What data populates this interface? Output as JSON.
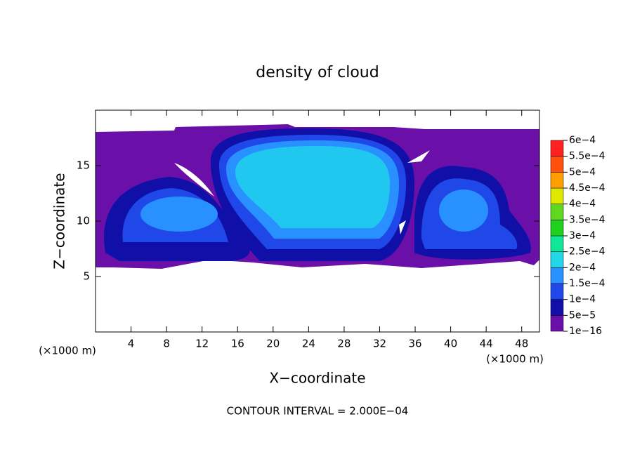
{
  "chart_data": {
    "type": "contour",
    "title": "density of cloud",
    "x_label": "X−coordinate",
    "y_label": "Z−coordinate",
    "x_unit_label": "(×1000 m)",
    "y_unit_label": "(×1000 m)",
    "annotation": "CONTOUR INTERVAL = 2.000E−04",
    "xlim": [
      0,
      50
    ],
    "xticks": [
      4,
      8,
      12,
      16,
      20,
      24,
      28,
      32,
      36,
      40,
      44,
      48
    ],
    "ylim": [
      0,
      20
    ],
    "yticks": [
      5,
      10,
      15
    ],
    "colorbar": {
      "levels": [
        {
          "value": 1e-16,
          "label": "1e−16"
        },
        {
          "value": 5e-05,
          "label": "5e−5"
        },
        {
          "value": 0.0001,
          "label": "1e−4"
        },
        {
          "value": 0.00015,
          "label": "1.5e−4"
        },
        {
          "value": 0.0002,
          "label": "2e−4"
        },
        {
          "value": 0.00025,
          "label": "2.5e−4"
        },
        {
          "value": 0.0003,
          "label": "3e−4"
        },
        {
          "value": 0.00035,
          "label": "3.5e−4"
        },
        {
          "value": 0.0004,
          "label": "4e−4"
        },
        {
          "value": 0.00045,
          "label": "4.5e−4"
        },
        {
          "value": 0.0005,
          "label": "5e−4"
        },
        {
          "value": 0.00055,
          "label": "5.5e−4"
        },
        {
          "value": 0.0006,
          "label": "6e−4"
        }
      ],
      "colors": [
        "#6a0fa8",
        "#1010a8",
        "#2048e8",
        "#2890ff",
        "#20d8e8",
        "#10e898",
        "#20d020",
        "#60d820",
        "#e0e800",
        "#ffa000",
        "#ff5010",
        "#ff2020"
      ]
    }
  }
}
